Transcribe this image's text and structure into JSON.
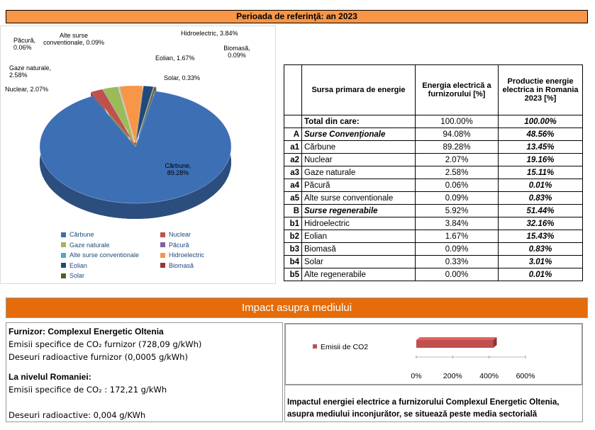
{
  "header": {
    "title": "Perioada de referinţă: an 2023"
  },
  "chart_data": [
    {
      "type": "pie",
      "categories": [
        "Cărbune",
        "Nuclear",
        "Gaze naturale",
        "Păcură",
        "Alte surse conventionale",
        "Hidroelectric",
        "Eolian",
        "Biomasă",
        "Solar"
      ],
      "values": [
        89.28,
        2.07,
        2.58,
        0.06,
        0.09,
        3.84,
        1.67,
        0.09,
        0.33
      ],
      "value_labels": [
        "Cărbune, 89.28%",
        "Nuclear, 2.07%",
        "Gaze naturale, 2.58%",
        "Păcură, 0.06%",
        "Alte surse conventionale, 0.09%",
        "Hidroelectric, 3.84%",
        "Eolian, 1.67%",
        "Biomasă, 0.09%",
        "Solar, 0.33%"
      ],
      "colors": [
        "#3d6fb5",
        "#c0504d",
        "#9bbb59",
        "#8064a2",
        "#4bacc6",
        "#f79646",
        "#1f497d",
        "#953735",
        "#4f6228"
      ]
    },
    {
      "type": "bar",
      "orientation": "horizontal",
      "series": [
        {
          "name": "Emisii de CO2",
          "color": "#c0504d",
          "values": [
            422.8
          ]
        }
      ],
      "xlim": [
        0,
        600
      ],
      "xticks": [
        {
          "value": 0,
          "label": "0%"
        },
        {
          "value": 200,
          "label": "200%"
        },
        {
          "value": 400,
          "label": "400%"
        },
        {
          "value": 600,
          "label": "600%"
        }
      ]
    }
  ],
  "table": {
    "headers": [
      "Sursa primara de energie",
      "Energia electrică a furnizorului [%]",
      "Productie energie electrica in Romania 2023 [%]"
    ],
    "rows": [
      {
        "name": "Total din care:",
        "furnizor": "100.00%",
        "romania": "100.00%"
      },
      {
        "code": "A",
        "name": "Surse Convenţionale",
        "furnizor": "94.08%",
        "romania": "48.56%"
      },
      {
        "code": "a1",
        "name": "Cărbune",
        "furnizor": "89.28%",
        "romania": "13.45%"
      },
      {
        "code": "a2",
        "name": "Nuclear",
        "furnizor": "2.07%",
        "romania": "19.16%"
      },
      {
        "code": "a3",
        "name": "Gaze naturale",
        "furnizor": "2.58%",
        "romania": "15.11%"
      },
      {
        "code": "a4",
        "name": "Păcură",
        "furnizor": "0.06%",
        "romania": "0.01%"
      },
      {
        "code": "a5",
        "name": "Alte surse conventionale",
        "furnizor": "0.09%",
        "romania": "0.83%"
      },
      {
        "code": "B",
        "name": "Surse regenerabile",
        "furnizor": "5.92%",
        "romania": "51.44%"
      },
      {
        "code": "b1",
        "name": "Hidroelectric",
        "furnizor": "3.84%",
        "romania": "32.16%"
      },
      {
        "code": "b2",
        "name": "Eolian",
        "furnizor": "1.67%",
        "romania": "15.43%"
      },
      {
        "code": "b3",
        "name": "Biomasă",
        "furnizor": "0.09%",
        "romania": "0.83%"
      },
      {
        "code": "b4",
        "name": "Solar",
        "furnizor": "0.33%",
        "romania": "3.01%"
      },
      {
        "code": "b5",
        "name": "Alte regenerabile",
        "furnizor": "0.00%",
        "romania": "0.01%"
      }
    ]
  },
  "impact": {
    "title": "Impact asupra mediului",
    "supplier": {
      "heading": "Furnizor: Complexul Energetic Oltenia",
      "lines": [
        "Emisii specifice de CO₂ furnizor (728,09 g/kWh)",
        "Deseuri radioactive furnizor (0,0005 g/kWh)"
      ]
    },
    "national": {
      "heading": "La nivelul Romaniei:",
      "lines": [
        "Emisii specifice de CO₂ : 172,21 g/kWh",
        "Deseuri radioactive: 0,004 g/KWh"
      ]
    },
    "conclusion": "Impactul energiei electrice a furnizorului  Complexul Energetic Oltenia, asupra mediului inconjurător, se situează peste media sectorială"
  }
}
